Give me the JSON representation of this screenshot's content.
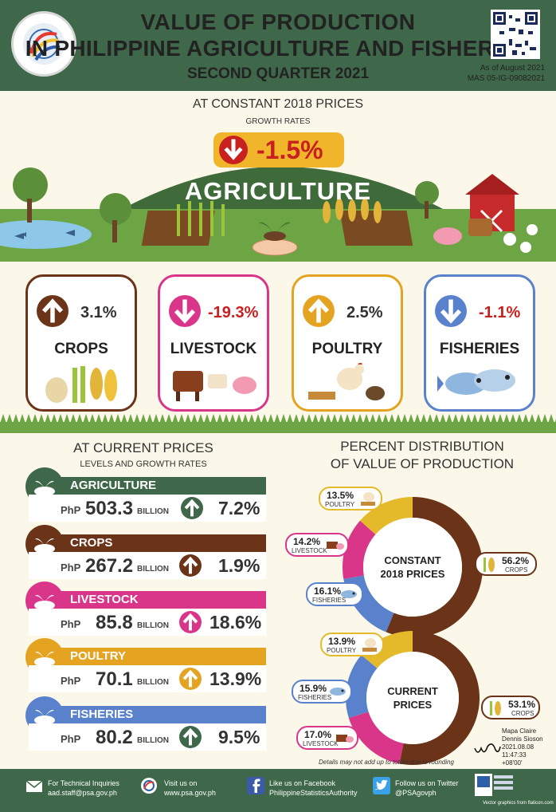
{
  "header": {
    "title_line1": "VALUE OF PRODUCTION",
    "title_line2": "IN PHILIPPINE AGRICULTURE AND FISHERIES",
    "subtitle": "SECOND QUARTER 2021",
    "as_of": "As of August 2021",
    "ref_no": "MAS 05-IG-09082021",
    "logo_text": "PHILIPPINE STATISTICS AUTHORITY"
  },
  "constant": {
    "title": "AT CONSTANT 2018 PRICES",
    "growth_label": "GROWTH RATES",
    "agriculture_rate": "-1.5%",
    "agriculture_label": "AGRICULTURE",
    "arrow_down_color": "#c8201f"
  },
  "cards": [
    {
      "name": "CROPS",
      "rate": "3.1%",
      "direction": "up",
      "border": "#6b3318",
      "arrow_color": "#6b3318",
      "rate_color": "#333333"
    },
    {
      "name": "LIVESTOCK",
      "rate": "-19.3%",
      "direction": "down",
      "border": "#d9368a",
      "arrow_color": "#d9368a",
      "rate_color": "#c8201f"
    },
    {
      "name": "POULTRY",
      "rate": "2.5%",
      "direction": "up",
      "border": "#e4a421",
      "arrow_color": "#e4a421",
      "rate_color": "#333333"
    },
    {
      "name": "FISHERIES",
      "rate": "-1.1%",
      "direction": "down",
      "border": "#5a82cc",
      "arrow_color": "#5a82cc",
      "rate_color": "#c8201f"
    }
  ],
  "current": {
    "title": "AT CURRENT PRICES",
    "subtitle": "LEVELS AND GROWTH RATES",
    "currency": "PhP",
    "unit": "BILLION",
    "rows": [
      {
        "name": "AGRICULTURE",
        "level": "503.3",
        "rate": "7.2%",
        "color": "#3e6849",
        "arrow_color": "#3e6849"
      },
      {
        "name": "CROPS",
        "level": "267.2",
        "rate": "1.9%",
        "color": "#6b3318",
        "arrow_color": "#6b3318"
      },
      {
        "name": "LIVESTOCK",
        "level": "85.8",
        "rate": "18.6%",
        "color": "#d9368a",
        "arrow_color": "#d9368a"
      },
      {
        "name": "POULTRY",
        "level": "70.1",
        "rate": "13.9%",
        "color": "#e4a421",
        "arrow_color": "#e4a421"
      },
      {
        "name": "FISHERIES",
        "level": "80.2",
        "rate": "9.5%",
        "color": "#5a82cc",
        "arrow_color": "#3e6849"
      }
    ]
  },
  "distribution": {
    "title_line1": "PERCENT DISTRIBUTION",
    "title_line2": "OF VALUE OF PRODUCTION",
    "note": "Details may not add up to totals due to rounding",
    "constant_label_1": "CONSTANT",
    "constant_label_2": "2018 PRICES",
    "current_label_1": "CURRENT",
    "current_label_2": "PRICES"
  },
  "chart_data": [
    {
      "type": "pie",
      "title": "CONSTANT 2018 PRICES",
      "categories": [
        "CROPS",
        "FISHERIES",
        "LIVESTOCK",
        "POULTRY"
      ],
      "values": [
        56.2,
        16.1,
        14.2,
        13.5
      ],
      "labels": [
        "56.2%",
        "16.1%",
        "14.2%",
        "13.5%"
      ],
      "colors": [
        "#6b3318",
        "#5a82cc",
        "#d9368a",
        "#e4b92a"
      ]
    },
    {
      "type": "pie",
      "title": "CURRENT PRICES",
      "categories": [
        "CROPS",
        "LIVESTOCK",
        "FISHERIES",
        "POULTRY"
      ],
      "values": [
        53.1,
        17.0,
        15.9,
        13.9
      ],
      "labels": [
        "53.1%",
        "17.0%",
        "15.9%",
        "13.9%"
      ],
      "colors": [
        "#6b3318",
        "#d9368a",
        "#5a82cc",
        "#e4b92a"
      ]
    }
  ],
  "signature": {
    "name_line1": "Mapa Claire",
    "name_line2": "Dennis Sioson",
    "date": "2021.08.08",
    "time": "11:47:33",
    "tz": "+08'00'"
  },
  "footer": {
    "inquiries_label": "For Technical Inquiries",
    "inquiries_email": "aad.staff@psa.gov.ph",
    "visit_label": "Visit us on",
    "visit_url": "www.psa.gov.ph",
    "facebook_label": "Like us on Facebook",
    "facebook_handle": "PhilippineStatisticsAuthority",
    "twitter_label": "Follow us on Twitter",
    "twitter_handle": "@PSAgovph",
    "credit": "Vector graphics from flaticon.com"
  }
}
